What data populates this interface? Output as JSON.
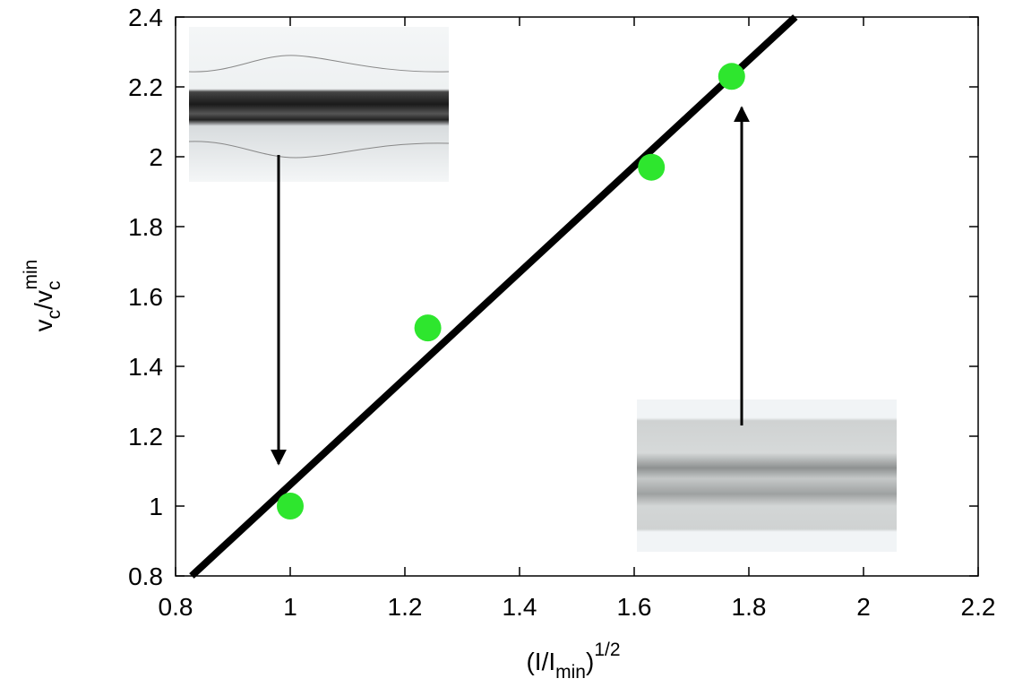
{
  "chart_data": {
    "type": "scatter",
    "xlabel": [
      "(I/I",
      "min",
      ")",
      "1/2"
    ],
    "ylabel": [
      "v",
      "c",
      "/v",
      "c",
      "min"
    ],
    "xlim": [
      0.8,
      2.2
    ],
    "xticks": [
      0.8,
      1,
      1.2,
      1.4,
      1.6,
      1.8,
      2,
      2.2
    ],
    "ylim": [
      0.8,
      2.4
    ],
    "yticks": [
      0.8,
      1,
      1.2,
      1.4,
      1.6,
      1.8,
      2,
      2.2,
      2.4
    ],
    "series": [
      {
        "style": "points",
        "color": "#2ee62e",
        "x": [
          1.0,
          1.24,
          1.63,
          1.77
        ],
        "values": [
          1.0,
          1.51,
          1.97,
          2.23
        ]
      },
      {
        "style": "line",
        "color": "#000000",
        "x": [
          0.828,
          1.881
        ],
        "values": [
          0.8,
          2.4
        ]
      }
    ]
  }
}
